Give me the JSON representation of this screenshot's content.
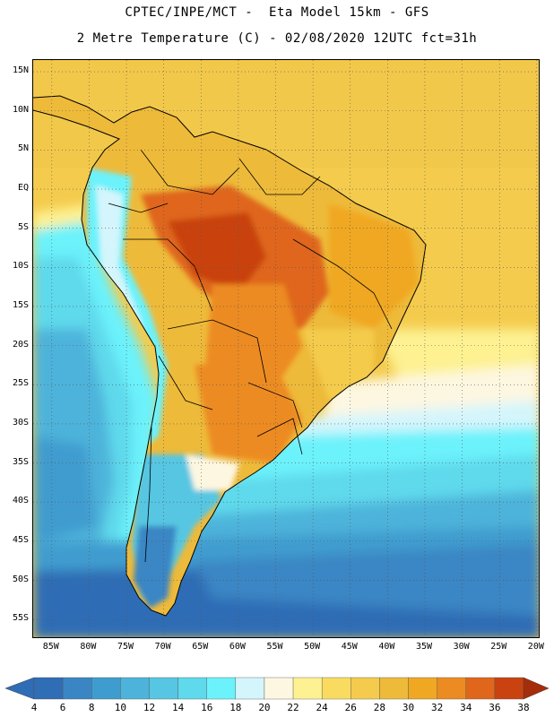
{
  "header": {
    "title_line1": "CPTEC/INPE/MCT -  Eta Model 15km - GFS",
    "title_line2": "2 Metre Temperature (C) - 02/08/2020 12UTC fct=31h"
  },
  "map": {
    "region": "South America",
    "lat_labels": [
      "15N",
      "10N",
      "5N",
      "EQ",
      "5S",
      "10S",
      "15S",
      "20S",
      "25S",
      "30S",
      "35S",
      "40S",
      "45S",
      "50S",
      "55S"
    ],
    "lon_labels": [
      "85W",
      "80W",
      "75W",
      "70W",
      "65W",
      "60W",
      "55W",
      "50W",
      "45W",
      "40W",
      "35W",
      "30W",
      "25W",
      "20W"
    ],
    "lat_values": [
      15,
      10,
      5,
      0,
      -5,
      -10,
      -15,
      -20,
      -25,
      -30,
      -35,
      -40,
      -45,
      -50,
      -55
    ],
    "lon_values": [
      -85,
      -80,
      -75,
      -70,
      -65,
      -60,
      -55,
      -50,
      -45,
      -40,
      -35,
      -30,
      -25,
      -20
    ]
  },
  "colorbar": {
    "unit": "C",
    "labels": [
      "4",
      "6",
      "8",
      "10",
      "12",
      "14",
      "16",
      "18",
      "20",
      "22",
      "24",
      "26",
      "28",
      "30",
      "32",
      "34",
      "36",
      "38"
    ],
    "colors": [
      "#2f6db5",
      "#3a86c4",
      "#3f9ccf",
      "#4db3da",
      "#57c6e2",
      "#5fd9ec",
      "#6cf2fb",
      "#d4f5fc",
      "#fdf7e1",
      "#fdf192",
      "#f9dc5f",
      "#f4cb4c",
      "#eeba3a",
      "#f0a822",
      "#ec8b21",
      "#df661a",
      "#c9420f",
      "#a52d0a"
    ]
  }
}
